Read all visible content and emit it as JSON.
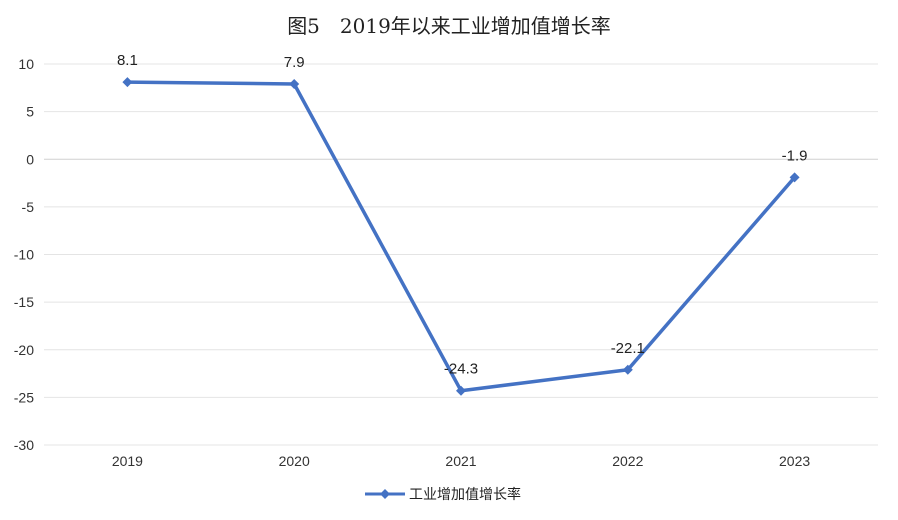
{
  "chart_data": {
    "type": "line",
    "title": "图5　2019年以来工业增加值增长率",
    "categories": [
      "2019",
      "2020",
      "2021",
      "2022",
      "2023"
    ],
    "series": [
      {
        "name": "工业增加值增长率",
        "values": [
          8.1,
          7.9,
          -24.3,
          -22.1,
          -1.9
        ],
        "color": "#4472C4"
      }
    ],
    "data_labels": [
      "8.1",
      "7.9",
      "-24.3",
      "-22.1",
      "-1.9"
    ],
    "ylim": [
      -30,
      10
    ],
    "yticks": [
      10,
      5,
      0,
      -5,
      -10,
      -15,
      -20,
      -25,
      -30
    ],
    "grid": true,
    "legend_position": "bottom"
  }
}
